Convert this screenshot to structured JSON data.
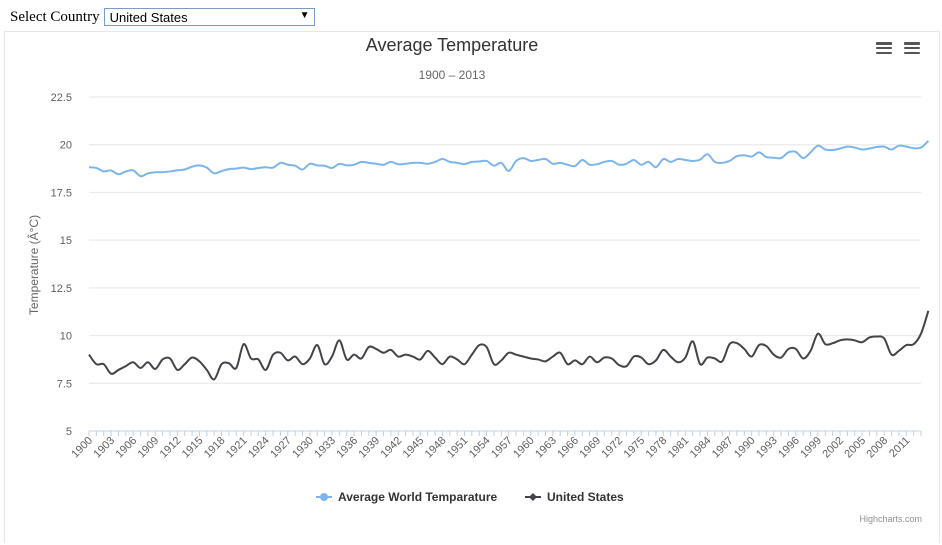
{
  "control": {
    "label": "Select Country",
    "selected": "United States"
  },
  "chart_data": {
    "type": "line",
    "title": "Average Temperature",
    "subtitle": "1900 – 2013",
    "ylabel": "Temperature (Â°C)",
    "xlabel": "",
    "ylim": [
      5,
      22.5
    ],
    "yticks": [
      "5",
      "7.5",
      "10",
      "12.5",
      "15",
      "17.5",
      "20",
      "22.5"
    ],
    "xticks": [
      "1900",
      "1903",
      "1906",
      "1909",
      "1912",
      "1915",
      "1918",
      "1921",
      "1924",
      "1927",
      "1930",
      "1933",
      "1936",
      "1939",
      "1942",
      "1945",
      "1948",
      "1951",
      "1954",
      "1957",
      "1960",
      "1963",
      "1966",
      "1969",
      "1972",
      "1975",
      "1978",
      "1981",
      "1984",
      "1987",
      "1990",
      "1993",
      "1996",
      "1999",
      "2002",
      "2005",
      "2008",
      "2011"
    ],
    "x_start": 1900,
    "x_end": 2013,
    "grid": true,
    "legend_position": "bottom-center",
    "series": [
      {
        "name": "Average World Temparature",
        "color": "#7cb5ec",
        "marker": "circle",
        "values": [
          18.82,
          18.78,
          18.6,
          18.65,
          18.45,
          18.6,
          18.66,
          18.35,
          18.5,
          18.56,
          18.56,
          18.6,
          18.66,
          18.7,
          18.85,
          18.92,
          18.8,
          18.5,
          18.62,
          18.72,
          18.75,
          18.8,
          18.72,
          18.78,
          18.82,
          18.8,
          19.05,
          18.95,
          18.9,
          18.7,
          19.0,
          18.92,
          18.9,
          18.78,
          19.0,
          18.92,
          18.95,
          19.1,
          19.05,
          19.0,
          18.95,
          19.1,
          18.98,
          19.0,
          19.05,
          19.05,
          19.0,
          19.1,
          19.25,
          19.1,
          19.05,
          18.98,
          19.1,
          19.12,
          19.15,
          18.9,
          19.05,
          18.62,
          19.15,
          19.3,
          19.15,
          19.2,
          19.25,
          19.0,
          19.05,
          18.95,
          18.88,
          19.2,
          18.95,
          18.98,
          19.1,
          19.15,
          18.95,
          19.0,
          19.2,
          18.95,
          19.1,
          18.82,
          19.25,
          19.1,
          19.25,
          19.2,
          19.15,
          19.22,
          19.5,
          19.1,
          19.05,
          19.15,
          19.4,
          19.45,
          19.38,
          19.6,
          19.35,
          19.32,
          19.3,
          19.6,
          19.62,
          19.3,
          19.6,
          19.95,
          19.75,
          19.72,
          19.8,
          19.9,
          19.85,
          19.75,
          19.8,
          19.88,
          19.9,
          19.75,
          19.95,
          19.9,
          19.82,
          19.85,
          20.2
        ]
      },
      {
        "name": "United States",
        "color": "#434348",
        "marker": "diamond",
        "values": [
          9.0,
          8.5,
          8.5,
          8.0,
          8.2,
          8.4,
          8.6,
          8.3,
          8.6,
          8.25,
          8.75,
          8.8,
          8.2,
          8.5,
          8.85,
          8.65,
          8.2,
          7.7,
          8.5,
          8.55,
          8.3,
          9.55,
          8.8,
          8.75,
          8.2,
          9.0,
          9.1,
          8.7,
          8.9,
          8.5,
          8.8,
          9.5,
          8.5,
          8.9,
          9.75,
          8.75,
          9.0,
          8.8,
          9.4,
          9.3,
          9.1,
          9.25,
          8.9,
          9.0,
          8.9,
          8.75,
          9.2,
          8.85,
          8.5,
          8.9,
          8.75,
          8.5,
          9.0,
          9.5,
          9.4,
          8.5,
          8.7,
          9.1,
          9.0,
          8.9,
          8.8,
          8.75,
          8.65,
          8.9,
          9.1,
          8.5,
          8.7,
          8.5,
          8.9,
          8.6,
          8.85,
          8.8,
          8.45,
          8.4,
          8.9,
          8.85,
          8.5,
          8.7,
          9.25,
          8.9,
          8.6,
          8.85,
          9.7,
          8.5,
          8.85,
          8.8,
          8.65,
          9.55,
          9.6,
          9.3,
          8.9,
          9.5,
          9.45,
          9.0,
          8.85,
          9.3,
          9.3,
          8.8,
          9.2,
          10.1,
          9.55,
          9.6,
          9.75,
          9.8,
          9.75,
          9.65,
          9.9,
          9.95,
          9.85,
          9.0,
          9.2,
          9.5,
          9.55,
          10.1,
          11.3
        ]
      }
    ],
    "credits": "Highcharts.com"
  },
  "icons": {
    "menu": "hamburger-menu-icon"
  }
}
